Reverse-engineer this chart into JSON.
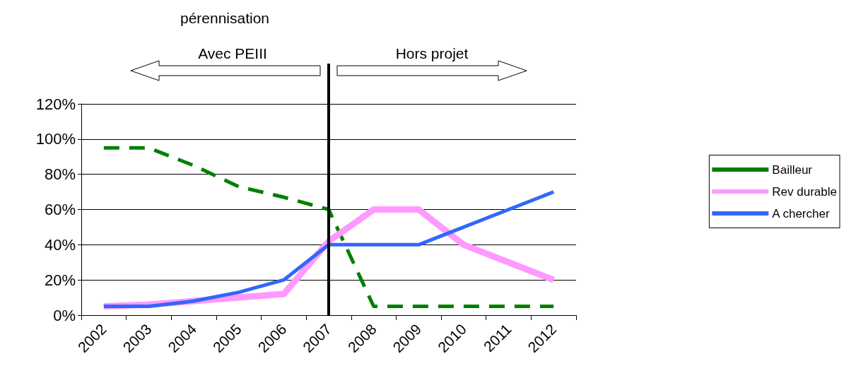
{
  "chart_data": {
    "type": "line",
    "title": "pérennisation",
    "categories": [
      "2002",
      "2003",
      "2004",
      "2005",
      "2006",
      "2007",
      "2008",
      "2009",
      "2010",
      "2011",
      "2012"
    ],
    "series": [
      {
        "name": "Bailleur",
        "color": "#008000",
        "line_style": "dashed",
        "values": [
          95,
          95,
          85,
          73,
          67,
          60,
          5,
          5,
          5,
          5,
          5
        ]
      },
      {
        "name": "Rev durable",
        "color": "#ff99ff",
        "line_style": "solid",
        "values": [
          5,
          6,
          8,
          10,
          12,
          42,
          60,
          60,
          40,
          30,
          20
        ]
      },
      {
        "name": "A chercher",
        "color": "#3366ff",
        "line_style": "solid",
        "values": [
          5,
          5,
          8,
          13,
          20,
          40,
          40,
          40,
          50,
          60,
          70
        ]
      }
    ],
    "ylim": [
      0,
      120
    ],
    "yticks": [
      {
        "value": 0,
        "label": "0%"
      },
      {
        "value": 20,
        "label": "20%"
      },
      {
        "value": 40,
        "label": "40%"
      },
      {
        "value": 60,
        "label": "60%"
      },
      {
        "value": 80,
        "label": "80%"
      },
      {
        "value": 100,
        "label": "100%"
      },
      {
        "value": 120,
        "label": "120%"
      }
    ],
    "grid": "y",
    "legend": "right",
    "marker": "none",
    "ref_lines": [
      {
        "axis": "x",
        "value": "2007",
        "color": "#000000"
      }
    ],
    "annotations": [
      "Avec PEIII",
      "Hors projet"
    ]
  }
}
